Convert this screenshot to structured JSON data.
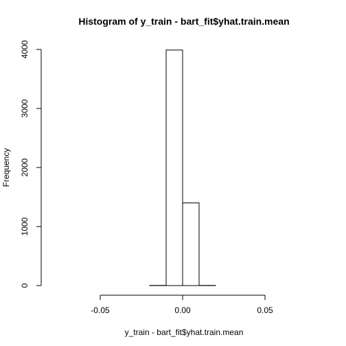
{
  "chart_data": {
    "type": "bar",
    "title": "Histogram of y_train - bart_fit$yhat.train.mean",
    "xlabel": "y_train - bart_fit$yhat.train.mean",
    "ylabel": "Frequency",
    "xlim": [
      -0.08,
      0.08
    ],
    "ylim": [
      0,
      4000
    ],
    "x_ticks": [
      -0.05,
      0.0,
      0.05
    ],
    "x_tick_labels": [
      "-0.05",
      "0.00",
      "0.05"
    ],
    "y_ticks": [
      0,
      1000,
      2000,
      3000,
      4000
    ],
    "y_tick_labels": [
      "0",
      "1000",
      "2000",
      "3000",
      "4000"
    ],
    "bins": [
      {
        "start": -0.08,
        "end": -0.07,
        "count": 0
      },
      {
        "start": -0.07,
        "end": -0.06,
        "count": 0
      },
      {
        "start": -0.06,
        "end": -0.05,
        "count": 0
      },
      {
        "start": -0.05,
        "end": -0.04,
        "count": 0
      },
      {
        "start": -0.04,
        "end": -0.03,
        "count": 0
      },
      {
        "start": -0.03,
        "end": -0.02,
        "count": 0
      },
      {
        "start": -0.02,
        "end": -0.01,
        "count": 3
      },
      {
        "start": -0.01,
        "end": 0.0,
        "count": 3990
      },
      {
        "start": 0.0,
        "end": 0.01,
        "count": 1400
      },
      {
        "start": 0.01,
        "end": 0.02,
        "count": 3
      },
      {
        "start": 0.02,
        "end": 0.03,
        "count": 0
      },
      {
        "start": 0.03,
        "end": 0.04,
        "count": 0
      },
      {
        "start": 0.04,
        "end": 0.05,
        "count": 0
      },
      {
        "start": 0.05,
        "end": 0.06,
        "count": 0
      },
      {
        "start": 0.06,
        "end": 0.07,
        "count": 0
      },
      {
        "start": 0.07,
        "end": 0.08,
        "count": 0
      }
    ],
    "grid": false,
    "legend": "none"
  }
}
